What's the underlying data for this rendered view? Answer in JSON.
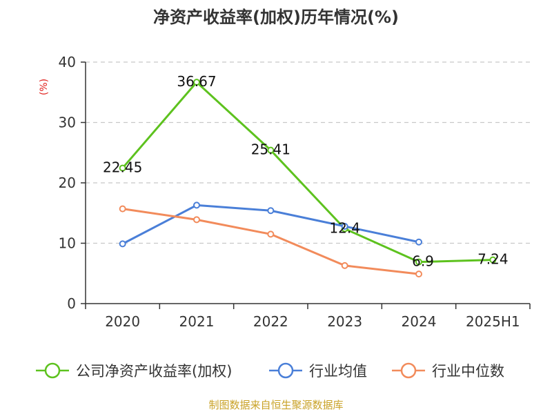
{
  "chart_data": {
    "type": "line",
    "title": "净资产收益率(加权)历年情况(%)",
    "ylabel": "(%)",
    "xlabel": "",
    "categories": [
      "2020",
      "2021",
      "2022",
      "2023",
      "2024",
      "2025H1"
    ],
    "ylim": [
      0,
      40
    ],
    "yticks": [
      0,
      10,
      20,
      30,
      40
    ],
    "grid": true,
    "legend_position": "bottom",
    "series": [
      {
        "name": "公司净资产收益率(加权)",
        "color": "#5dc21e",
        "values": [
          22.45,
          36.67,
          25.41,
          12.4,
          6.9,
          7.24
        ],
        "labels": [
          "22.45",
          "36.67",
          "25.41",
          "12.4",
          "6.9",
          "7.24"
        ]
      },
      {
        "name": "行业均值",
        "color": "#4a7fd8",
        "values": [
          9.9,
          16.3,
          15.4,
          12.8,
          10.2,
          null
        ]
      },
      {
        "name": "行业中位数",
        "color": "#f28b5b",
        "values": [
          15.7,
          13.9,
          11.5,
          6.3,
          4.9,
          null
        ]
      }
    ],
    "source": "制图数据来自恒生聚源数据库",
    "colors": {
      "ylabel": "#e0201c",
      "source": "#c9a227"
    }
  }
}
